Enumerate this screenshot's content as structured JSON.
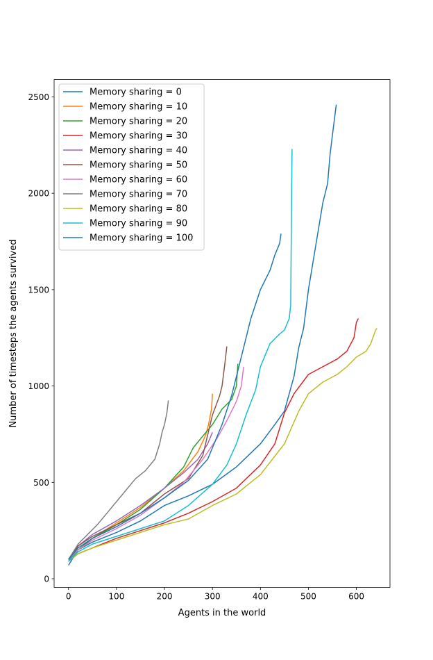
{
  "chart_data": {
    "type": "line",
    "title": "",
    "xlabel": "Agents in the world",
    "ylabel": "Number of timesteps the agents survived",
    "xlim": [
      -30,
      670
    ],
    "ylim": [
      -45,
      2590
    ],
    "xticks": [
      0,
      100,
      200,
      300,
      400,
      500,
      600
    ],
    "yticks": [
      0,
      500,
      1000,
      1500,
      2000,
      2500
    ],
    "grid": false,
    "legend_position": "top-left",
    "series": [
      {
        "name": "Memory sharing = 0",
        "color": "#1f77b4",
        "x": [
          0,
          20,
          50,
          100,
          150,
          200,
          250,
          300,
          350,
          400,
          430,
          450,
          470,
          480,
          490,
          500,
          510,
          520,
          530,
          540,
          545,
          550,
          555,
          558
        ],
        "y": [
          70,
          150,
          190,
          240,
          300,
          380,
          430,
          490,
          580,
          700,
          800,
          870,
          1050,
          1200,
          1300,
          1500,
          1650,
          1800,
          1950,
          2050,
          2200,
          2300,
          2400,
          2460
        ]
      },
      {
        "name": "Memory sharing = 10",
        "color": "#ff7f0e",
        "x": [
          0,
          20,
          50,
          100,
          150,
          200,
          240,
          270,
          285,
          292,
          298,
          300
        ],
        "y": [
          90,
          150,
          210,
          290,
          370,
          470,
          560,
          660,
          740,
          800,
          880,
          960
        ]
      },
      {
        "name": "Memory sharing = 20",
        "color": "#2ca02c",
        "x": [
          0,
          20,
          50,
          100,
          150,
          200,
          240,
          260,
          280,
          300,
          320,
          340,
          350,
          353
        ],
        "y": [
          90,
          150,
          210,
          280,
          360,
          470,
          580,
          680,
          740,
          800,
          880,
          930,
          1000,
          1115
        ]
      },
      {
        "name": "Memory sharing = 30",
        "color": "#d62728",
        "x": [
          0,
          20,
          50,
          100,
          150,
          200,
          250,
          300,
          350,
          400,
          430,
          450,
          470,
          500,
          530,
          560,
          580,
          595,
          600,
          604
        ],
        "y": [
          90,
          130,
          160,
          210,
          250,
          290,
          340,
          400,
          470,
          590,
          700,
          860,
          960,
          1060,
          1100,
          1140,
          1180,
          1250,
          1330,
          1350
        ]
      },
      {
        "name": "Memory sharing = 40",
        "color": "#9467bd",
        "x": [
          0,
          20,
          50,
          100,
          150,
          200,
          240,
          270,
          290,
          300
        ],
        "y": [
          100,
          170,
          230,
          300,
          380,
          470,
          550,
          620,
          700,
          760
        ]
      },
      {
        "name": "Memory sharing = 50",
        "color": "#8c564b",
        "x": [
          0,
          20,
          50,
          100,
          150,
          200,
          250,
          280,
          300,
          315,
          320,
          325,
          330
        ],
        "y": [
          100,
          170,
          220,
          280,
          340,
          440,
          520,
          640,
          850,
          950,
          1000,
          1100,
          1205
        ]
      },
      {
        "name": "Memory sharing = 60",
        "color": "#e377c2",
        "x": [
          0,
          20,
          50,
          100,
          150,
          200,
          240,
          280,
          310,
          330,
          350,
          360,
          365
        ],
        "y": [
          100,
          150,
          200,
          260,
          330,
          420,
          500,
          620,
          730,
          820,
          920,
          1000,
          1100
        ]
      },
      {
        "name": "Memory sharing = 70",
        "color": "#7f7f7f",
        "x": [
          0,
          20,
          40,
          60,
          80,
          100,
          120,
          140,
          160,
          180,
          190,
          195,
          200,
          205,
          208
        ],
        "y": [
          100,
          180,
          230,
          280,
          340,
          400,
          460,
          520,
          560,
          620,
          700,
          760,
          800,
          860,
          925
        ]
      },
      {
        "name": "Memory sharing = 80",
        "color": "#bcbd22",
        "x": [
          0,
          20,
          50,
          100,
          150,
          200,
          250,
          300,
          350,
          400,
          450,
          480,
          500,
          530,
          560,
          580,
          600,
          620,
          630,
          640,
          643
        ],
        "y": [
          90,
          130,
          160,
          200,
          240,
          280,
          310,
          380,
          440,
          540,
          700,
          870,
          960,
          1020,
          1060,
          1100,
          1150,
          1180,
          1220,
          1290,
          1300
        ]
      },
      {
        "name": "Memory sharing = 90",
        "color": "#17becf",
        "x": [
          0,
          20,
          50,
          100,
          150,
          200,
          250,
          300,
          330,
          350,
          370,
          390,
          400,
          420,
          440,
          450,
          460,
          463,
          465,
          466
        ],
        "y": [
          90,
          140,
          180,
          220,
          260,
          300,
          380,
          490,
          590,
          700,
          850,
          980,
          1100,
          1220,
          1270,
          1290,
          1350,
          1420,
          2000,
          2230
        ]
      },
      {
        "name": "Memory sharing = 100",
        "color": "#1f77b4",
        "x": [
          0,
          20,
          50,
          100,
          150,
          200,
          250,
          290,
          320,
          340,
          360,
          380,
          400,
          420,
          430,
          440,
          443
        ],
        "y": [
          100,
          160,
          210,
          270,
          340,
          420,
          510,
          620,
          800,
          950,
          1150,
          1350,
          1500,
          1600,
          1680,
          1740,
          1790
        ]
      }
    ]
  }
}
